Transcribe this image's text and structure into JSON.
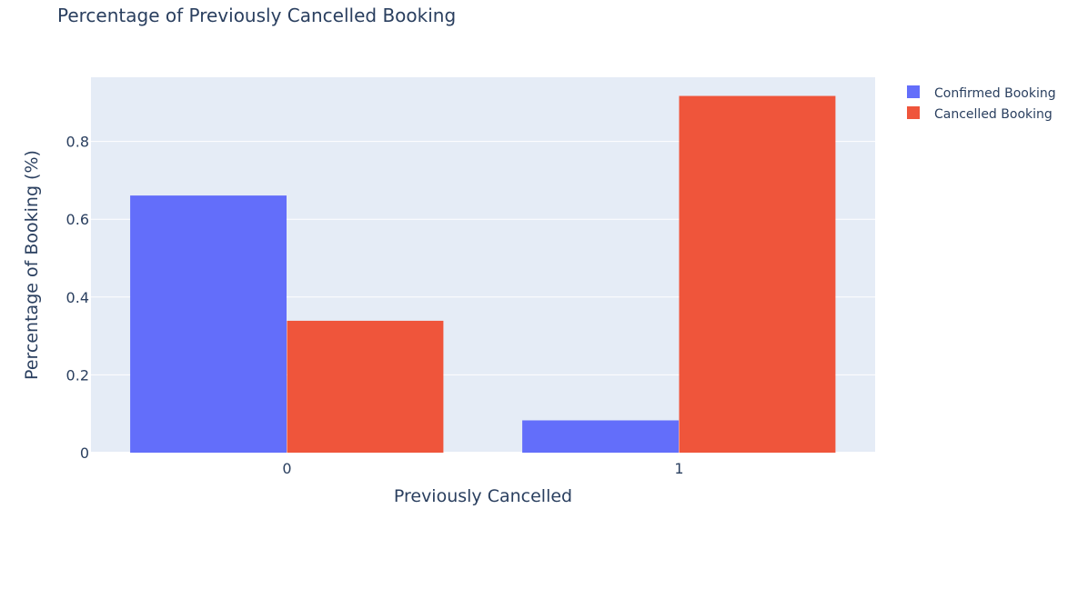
{
  "chart_data": {
    "type": "bar",
    "title": "Percentage of Previously Cancelled Booking",
    "xlabel": "Previously Cancelled",
    "ylabel": "Percentage of Booking (%)",
    "categories": [
      "0",
      "1"
    ],
    "series": [
      {
        "name": "Confirmed Booking",
        "color": "#636efa",
        "values": [
          0.661,
          0.083
        ]
      },
      {
        "name": "Cancelled Booking",
        "color": "#ef553b",
        "values": [
          0.339,
          0.917
        ]
      }
    ],
    "ylim": [
      0,
      0.965
    ],
    "yticks": [
      0,
      0.2,
      0.4,
      0.6,
      0.8
    ],
    "ytick_labels": [
      "0",
      "0.2",
      "0.4",
      "0.6",
      "0.8"
    ],
    "grid": true,
    "legend": "top-right",
    "plot_bg": "#e5ecf6"
  }
}
